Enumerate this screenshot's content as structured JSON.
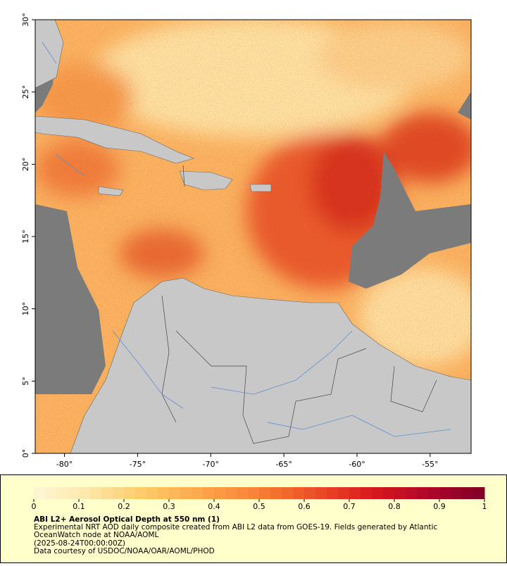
{
  "map": {
    "type": "map",
    "xlim": [
      -82,
      -52.2
    ],
    "ylim": [
      0,
      30
    ],
    "xticks": [
      {
        "value": -80,
        "label": "-80°"
      },
      {
        "value": -75,
        "label": "-75°"
      },
      {
        "value": -70,
        "label": "-70°"
      },
      {
        "value": -65,
        "label": "-65°"
      },
      {
        "value": -60,
        "label": "-60°"
      },
      {
        "value": -55,
        "label": "-55°"
      }
    ],
    "yticks": [
      {
        "value": 0,
        "label": "0°"
      },
      {
        "value": 5,
        "label": "5°"
      },
      {
        "value": 10,
        "label": "10°"
      },
      {
        "value": 15,
        "label": "15°"
      },
      {
        "value": 20,
        "label": "20°"
      },
      {
        "value": 25,
        "label": "25°"
      },
      {
        "value": 30,
        "label": "30°"
      }
    ]
  },
  "colorbar": {
    "clim": [
      0,
      1
    ],
    "ticks": [
      0,
      0.1,
      0.2,
      0.3,
      0.4,
      0.5,
      0.6,
      0.7,
      0.8,
      0.9,
      1
    ],
    "colormap": [
      "#fff7d8",
      "#fee6a6",
      "#fec966",
      "#fda54a",
      "#f87f36",
      "#ec4e26",
      "#d7191c",
      "#b0062a",
      "#800026"
    ]
  },
  "caption": {
    "title": "ABI L2+ Aerosol Optical Depth at 550 nm (1)",
    "lines": [
      "Experimental NRT AOD daily composite created from ABI L2 data from GOES-19. Fields generated by Atlantic",
      "OceanWatch node at NOAA/AOML",
      "(2025-08-24T00:00:00Z)",
      "Data courtesy of USDOC/NOAA/OAR/AOML/PHOD"
    ]
  }
}
